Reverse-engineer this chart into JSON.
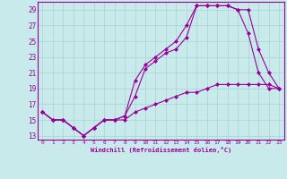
{
  "xlabel": "Windchill (Refroidissement éolien,°C)",
  "bg_color": "#c8eaea",
  "grid_color": "#a8d4d4",
  "line_color": "#990099",
  "xmin": -0.5,
  "xmax": 23.5,
  "ymin": 12.5,
  "ymax": 30.0,
  "yticks": [
    13,
    15,
    17,
    19,
    21,
    23,
    25,
    27,
    29
  ],
  "xticks": [
    0,
    1,
    2,
    3,
    4,
    5,
    6,
    7,
    8,
    9,
    10,
    11,
    12,
    13,
    14,
    15,
    16,
    17,
    18,
    19,
    20,
    21,
    22,
    23
  ],
  "line1_x": [
    0,
    1,
    2,
    3,
    4,
    5,
    6,
    7,
    8,
    9,
    10,
    11,
    12,
    13,
    14,
    15,
    16,
    17,
    18,
    19,
    20,
    21,
    22,
    23
  ],
  "line1_y": [
    16,
    15,
    15,
    14,
    13,
    14,
    15,
    15,
    15.5,
    18.0,
    21.5,
    22.5,
    23.5,
    24.0,
    25.5,
    29.5,
    29.5,
    29.5,
    29.5,
    29.0,
    29.0,
    24.0,
    21.0,
    19.0
  ],
  "line2_x": [
    0,
    1,
    2,
    3,
    4,
    5,
    6,
    7,
    8,
    9,
    10,
    11,
    12,
    13,
    14,
    15,
    16,
    17,
    18,
    19,
    20,
    21,
    22,
    23
  ],
  "line2_y": [
    16,
    15,
    15,
    14,
    13,
    14,
    15,
    15,
    15.5,
    20.0,
    22.0,
    23.0,
    24.0,
    25.0,
    27.0,
    29.5,
    29.5,
    29.5,
    29.5,
    29.0,
    26.0,
    21.0,
    19.0,
    19.0
  ],
  "line3_x": [
    0,
    1,
    2,
    3,
    4,
    5,
    6,
    7,
    8,
    9,
    10,
    11,
    12,
    13,
    14,
    15,
    16,
    17,
    18,
    19,
    20,
    21,
    22,
    23
  ],
  "line3_y": [
    16,
    15,
    15,
    14,
    13,
    14,
    15,
    15,
    15,
    16.0,
    16.5,
    17.0,
    17.5,
    18.0,
    18.5,
    18.5,
    19.0,
    19.5,
    19.5,
    19.5,
    19.5,
    19.5,
    19.5,
    19.0
  ]
}
